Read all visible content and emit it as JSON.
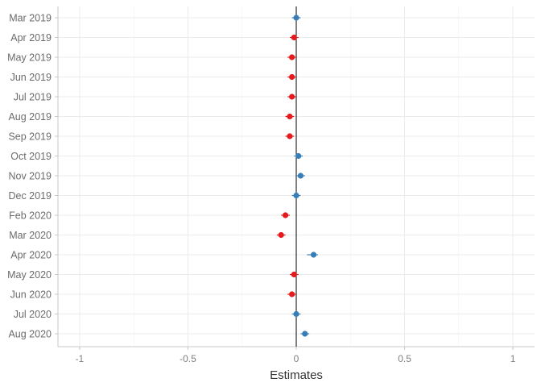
{
  "chart_data": {
    "type": "scatter",
    "subtype": "coefficient-dot-whisker",
    "xlabel": "Estimates",
    "ylabel": "",
    "xlim": [
      -1.1,
      1.1
    ],
    "x_ticks": [
      -1,
      -0.5,
      0,
      0.5,
      1
    ],
    "x_tick_labels": [
      "-1",
      "-0.5",
      "0",
      "0.5",
      "1"
    ],
    "reference_line": 0,
    "grid": true,
    "legend": "none",
    "colors": {
      "negative": "#e41a1c",
      "positive": "#377eb8",
      "axis_text": "#7f7f7f",
      "grid": "#ebebeb",
      "reference": "#000000"
    },
    "categories": [
      "Mar 2019",
      "Apr 2019",
      "May 2019",
      "Jun 2019",
      "Jul 2019",
      "Aug 2019",
      "Sep 2019",
      "Oct 2019",
      "Nov 2019",
      "Dec 2019",
      "Feb 2020",
      "Mar 2020",
      "Apr 2020",
      "May 2020",
      "Jun 2020",
      "Jul 2020",
      "Aug 2020"
    ],
    "series": [
      {
        "estimates": [
          0.0,
          -0.01,
          -0.02,
          -0.02,
          -0.02,
          -0.03,
          -0.03,
          0.01,
          0.02,
          0.0,
          -0.05,
          -0.07,
          0.08,
          -0.01,
          -0.02,
          0.0,
          0.04
        ],
        "ci_low": [
          -0.02,
          -0.03,
          -0.04,
          -0.04,
          -0.04,
          -0.05,
          -0.05,
          -0.01,
          0.0,
          -0.02,
          -0.07,
          -0.09,
          0.05,
          -0.03,
          -0.04,
          -0.02,
          0.02
        ],
        "ci_high": [
          0.02,
          0.01,
          0.0,
          0.0,
          0.0,
          -0.01,
          -0.01,
          0.03,
          0.04,
          0.02,
          -0.03,
          -0.05,
          0.1,
          0.01,
          0.0,
          0.02,
          0.06
        ],
        "sign": [
          "positive",
          "negative",
          "negative",
          "negative",
          "negative",
          "negative",
          "negative",
          "positive",
          "positive",
          "positive",
          "negative",
          "negative",
          "positive",
          "negative",
          "negative",
          "positive",
          "positive"
        ]
      }
    ]
  }
}
